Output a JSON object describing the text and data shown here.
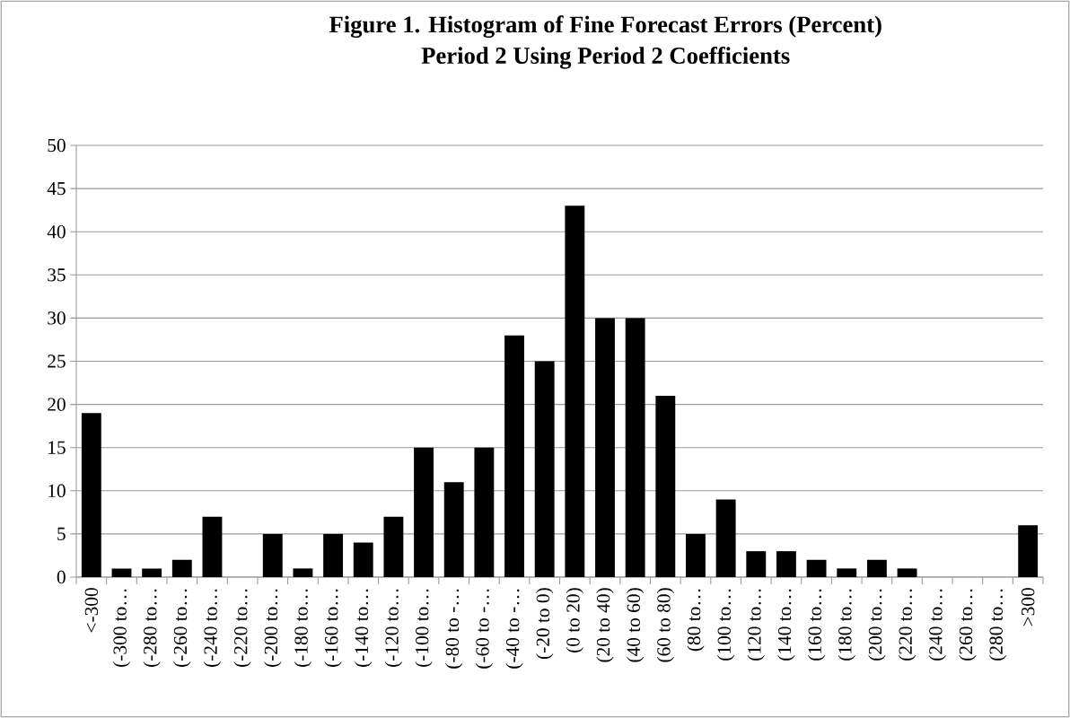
{
  "chart_data": {
    "type": "bar",
    "title": "Figure 1. Histogram of Fine Forecast Errors (Percent)\nPeriod 2 Using Period 2 Coefficients",
    "categories": [
      "<-300",
      "(-300 to…",
      "(-280 to…",
      "(-260 to…",
      "(-240 to…",
      "(-220 to…",
      "(-200 to…",
      "(-180 to…",
      "(-160 to…",
      "(-140 to…",
      "(-120 to…",
      "(-100 to…",
      "(-80 to -…",
      "(-60 to -…",
      "(-40 to -…",
      "(-20 to 0)",
      "(0 to 20)",
      "(20 to 40)",
      "(40 to 60)",
      "(60 to 80)",
      "(80 to…",
      "(100 to…",
      "(120 to…",
      "(140 to…",
      "(160 to…",
      "(180 to…",
      "(200 to…",
      "(220 to…",
      "(240 to…",
      "(260 to…",
      "(280 to…",
      ">300"
    ],
    "values": [
      19,
      1,
      1,
      2,
      7,
      0,
      5,
      1,
      5,
      4,
      7,
      15,
      11,
      15,
      28,
      25,
      43,
      30,
      30,
      21,
      5,
      9,
      3,
      3,
      2,
      1,
      2,
      1,
      0,
      0,
      0,
      6
    ],
    "color": "#000000",
    "ylim": [
      0,
      50
    ],
    "yticks": [
      0,
      5,
      10,
      15,
      20,
      25,
      30,
      35,
      40,
      45,
      50
    ],
    "grid": "y"
  }
}
